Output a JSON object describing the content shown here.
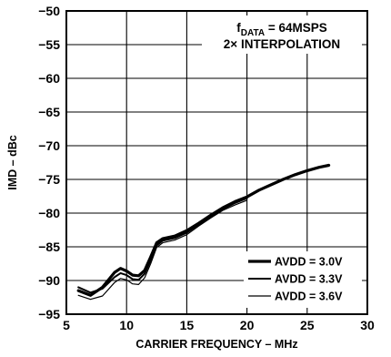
{
  "chart_data": {
    "type": "line",
    "xlabel": "CARRIER FREQUENCY – MHz",
    "ylabel": "IMD – dBc",
    "xlim": [
      5,
      30
    ],
    "ylim": [
      -95,
      -50
    ],
    "xticks": [
      5,
      10,
      15,
      20,
      25,
      30
    ],
    "yticks": [
      -50,
      -55,
      -60,
      -65,
      -70,
      -75,
      -80,
      -85,
      -90,
      -95
    ],
    "xtick_labels": [
      "5",
      "10",
      "15",
      "20",
      "25",
      "30"
    ],
    "ytick_labels": [
      "−50",
      "−55",
      "−60",
      "−65",
      "−70",
      "−75",
      "−80",
      "−85",
      "−90",
      "−95"
    ],
    "grid": true,
    "legend_position": "bottom-right",
    "annotation": {
      "f_prefix": "f",
      "f_subscript": "DATA",
      "f_value": " = 64MSPS",
      "line2": "2× INTERPOLATION"
    },
    "series": [
      {
        "name": "AVDD = 3.0V",
        "style": "thick",
        "x": [
          6,
          7,
          8,
          9,
          9.5,
          10,
          10.5,
          11,
          11.5,
          12,
          12.5,
          13,
          14,
          15,
          16,
          17,
          18,
          19,
          20,
          21,
          22,
          23,
          24,
          25,
          26,
          26.8
        ],
        "y": [
          -91.5,
          -92.2,
          -91.0,
          -88.8,
          -88.2,
          -88.6,
          -89.2,
          -89.3,
          -88.5,
          -86.5,
          -84.4,
          -83.8,
          -83.4,
          -82.6,
          -81.5,
          -80.3,
          -79.2,
          -78.3,
          -77.6,
          -76.6,
          -75.8,
          -75.0,
          -74.3,
          -73.7,
          -73.2,
          -72.9
        ]
      },
      {
        "name": "AVDD = 3.3V",
        "style": "medium",
        "x": [
          6,
          7,
          8,
          9,
          9.5,
          10,
          10.5,
          11,
          11.5,
          12,
          12.5,
          13,
          14,
          15,
          16,
          17,
          18,
          19,
          20
        ],
        "y": [
          -91.0,
          -91.8,
          -91.2,
          -89.5,
          -88.9,
          -89.2,
          -89.8,
          -89.9,
          -89.0,
          -87.0,
          -84.8,
          -84.1,
          -83.7,
          -82.9,
          -81.7,
          -80.5,
          -79.4,
          -78.5,
          -77.8
        ]
      },
      {
        "name": "AVDD = 3.6V",
        "style": "thin",
        "x": [
          6,
          7,
          8,
          9,
          9.5,
          10,
          10.5,
          11,
          11.5,
          12,
          12.5,
          13,
          14,
          15,
          16,
          17,
          18,
          19,
          20
        ],
        "y": [
          -92.2,
          -92.8,
          -92.3,
          -90.3,
          -89.7,
          -89.9,
          -90.5,
          -90.6,
          -89.6,
          -87.5,
          -85.1,
          -84.4,
          -84.0,
          -83.2,
          -81.9,
          -80.7,
          -79.6,
          -78.8,
          -78.1
        ]
      }
    ]
  }
}
